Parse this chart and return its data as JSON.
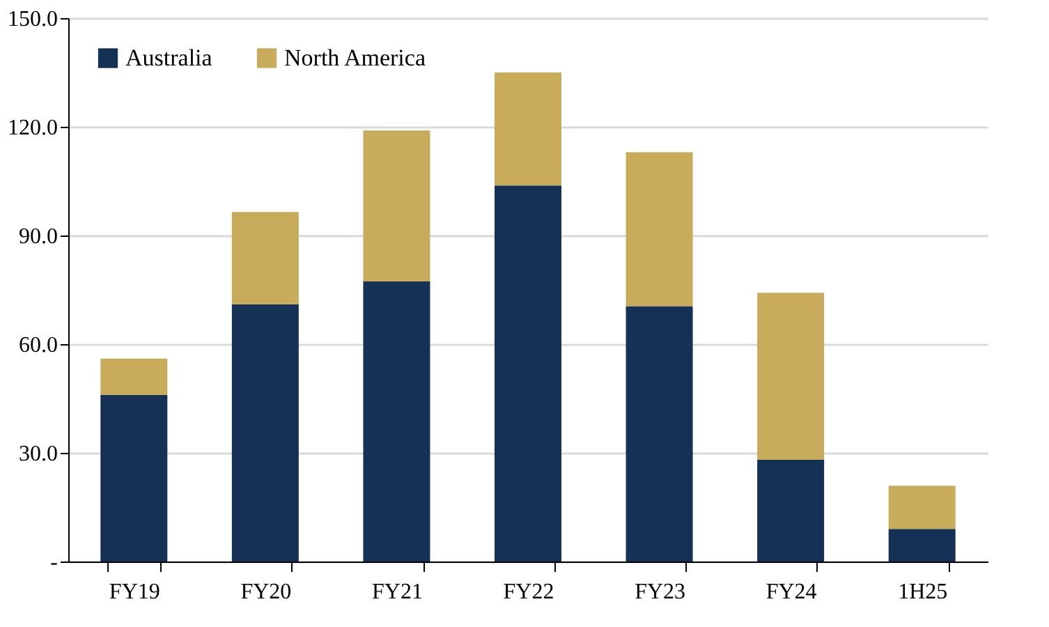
{
  "chart_data": {
    "type": "bar",
    "stacked": true,
    "categories": [
      "FY19",
      "FY20",
      "FY21",
      "FY22",
      "FY23",
      "FY24",
      "1H25"
    ],
    "series": [
      {
        "name": "Australia",
        "color": "#153256",
        "values": [
          46.0,
          71.0,
          77.3,
          103.8,
          70.5,
          28.1,
          9.0
        ]
      },
      {
        "name": "North America",
        "color": "#c8ac5c",
        "values": [
          10.0,
          25.5,
          41.7,
          31.2,
          42.5,
          46.1,
          11.9
        ]
      }
    ],
    "ylim": [
      0,
      150
    ],
    "yticks": [
      {
        "value": 0,
        "label": "-"
      },
      {
        "value": 30,
        "label": "30.0"
      },
      {
        "value": 60,
        "label": "60.0"
      },
      {
        "value": 90,
        "label": "90.0"
      },
      {
        "value": 120,
        "label": "120.0"
      },
      {
        "value": 150,
        "label": "150.0"
      }
    ],
    "grid": "y",
    "legend": "top left"
  }
}
